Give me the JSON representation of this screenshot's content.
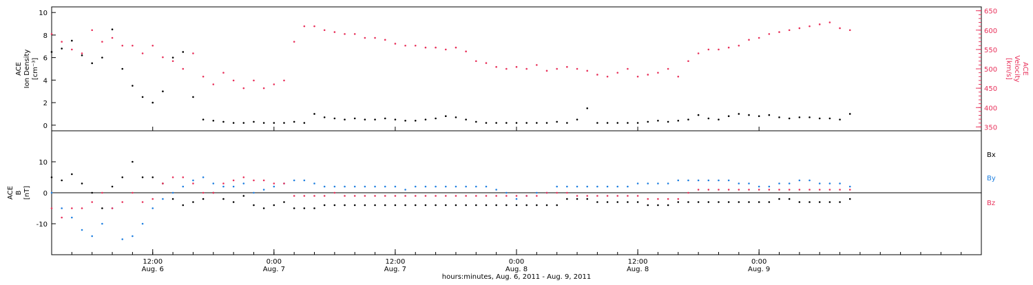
{
  "chart_data": [
    {
      "type": "scatter",
      "panel": "top",
      "ylabel_lines": [
        "ACE",
        "Ion Density",
        "[cm⁻³]"
      ],
      "y2label_lines": [
        "ACE",
        "Velocity",
        "[km/s]"
      ],
      "ylim": [
        -0.5,
        10.5
      ],
      "yticks": [
        0,
        2,
        4,
        6,
        8,
        10
      ],
      "y2lim": [
        340,
        660
      ],
      "y2ticks": [
        350,
        400,
        450,
        500,
        550,
        600,
        650
      ],
      "colors": {
        "density": "#000000",
        "velocity": "#e8305a"
      },
      "series": [
        {
          "axis": "left",
          "x": [
            0,
            1,
            2,
            3,
            4,
            5,
            6,
            7,
            8,
            9,
            10,
            11,
            12,
            13,
            14,
            15,
            16,
            17,
            18,
            19,
            20,
            21,
            22,
            23,
            24,
            25,
            26,
            27,
            28,
            29,
            30,
            31,
            32,
            33,
            34,
            35,
            36,
            37,
            38,
            39,
            40,
            41,
            42,
            43,
            44,
            45,
            46,
            47,
            48,
            49,
            50,
            51,
            52,
            53,
            54,
            55,
            56,
            57,
            58,
            59,
            60,
            61,
            62,
            63,
            64,
            65,
            66,
            67,
            68,
            69,
            70,
            71,
            72,
            73,
            74,
            75,
            76,
            77,
            78,
            79
          ],
          "values": [
            6.5,
            6.8,
            7.5,
            6.2,
            5.5,
            6.0,
            8.5,
            5.0,
            3.5,
            2.5,
            2.0,
            3.0,
            6.0,
            6.5,
            2.5,
            0.5,
            0.4,
            0.3,
            0.2,
            0.2,
            0.3,
            0.2,
            0.2,
            0.2,
            0.3,
            0.2,
            1.0,
            0.7,
            0.6,
            0.5,
            0.6,
            0.5,
            0.5,
            0.6,
            0.5,
            0.4,
            0.4,
            0.5,
            0.6,
            0.8,
            0.7,
            0.5,
            0.3,
            0.2,
            0.2,
            0.2,
            0.2,
            0.2,
            0.2,
            0.2,
            0.3,
            0.2,
            0.5,
            1.5,
            0.2,
            0.2,
            0.2,
            0.2,
            0.2,
            0.3,
            0.4,
            0.3,
            0.4,
            0.5,
            0.9,
            0.6,
            0.5,
            0.8,
            1.0,
            0.9,
            0.8,
            0.9,
            0.7,
            0.6,
            0.7,
            0.7,
            0.6,
            0.6,
            0.5,
            1.0
          ]
        },
        {
          "axis": "right",
          "x": [
            0,
            1,
            2,
            3,
            4,
            5,
            6,
            7,
            8,
            9,
            10,
            11,
            12,
            13,
            14,
            15,
            16,
            17,
            18,
            19,
            20,
            21,
            22,
            23,
            24,
            25,
            26,
            27,
            28,
            29,
            30,
            31,
            32,
            33,
            34,
            35,
            36,
            37,
            38,
            39,
            40,
            41,
            42,
            43,
            44,
            45,
            46,
            47,
            48,
            49,
            50,
            51,
            52,
            53,
            54,
            55,
            56,
            57,
            58,
            59,
            60,
            61,
            62,
            63,
            64,
            65,
            66,
            67,
            68,
            69,
            70,
            71,
            72,
            73,
            74,
            75,
            76,
            77,
            78,
            79
          ],
          "values": [
            590,
            570,
            550,
            540,
            600,
            570,
            580,
            560,
            560,
            540,
            560,
            530,
            520,
            500,
            540,
            480,
            460,
            490,
            470,
            450,
            470,
            450,
            460,
            470,
            570,
            610,
            610,
            600,
            595,
            590,
            590,
            580,
            580,
            575,
            565,
            560,
            560,
            555,
            555,
            550,
            555,
            545,
            520,
            515,
            505,
            500,
            505,
            500,
            510,
            495,
            500,
            505,
            500,
            495,
            485,
            480,
            490,
            500,
            480,
            485,
            490,
            500,
            480,
            520,
            540,
            550,
            550,
            555,
            560,
            575,
            580,
            590,
            595,
            600,
            605,
            610,
            615,
            620,
            605,
            600
          ]
        }
      ],
      "x_hours_from_start": [
        0,
        1,
        2,
        3,
        4,
        5,
        6,
        7,
        8,
        9,
        10,
        11,
        12,
        13,
        14,
        15,
        16,
        17,
        18,
        19,
        20,
        21,
        22,
        23,
        24,
        25,
        26,
        27,
        28,
        29,
        30,
        31,
        32,
        33,
        34,
        35,
        36,
        37,
        38,
        39,
        40,
        41,
        42,
        43,
        44,
        45,
        46,
        47,
        48,
        49,
        50,
        51,
        52,
        53,
        54,
        55,
        56,
        57,
        58,
        59,
        60,
        61,
        62,
        63,
        64,
        65,
        66,
        67,
        68,
        69,
        70,
        71,
        72,
        73,
        74,
        75,
        76,
        77,
        78,
        79
      ]
    },
    {
      "type": "scatter",
      "panel": "bottom",
      "ylabel_lines": [
        "ACE",
        "B",
        "[nT]"
      ],
      "ylim": [
        -20,
        20
      ],
      "yticks": [
        -10,
        0,
        10
      ],
      "series": [
        {
          "name": "Bx",
          "color": "#000000",
          "values": [
            5,
            4,
            6,
            3,
            0,
            -5,
            2,
            5,
            10,
            5,
            5,
            3,
            -2,
            -4,
            -3,
            -2,
            0,
            -2,
            -3,
            -1,
            -4,
            -5,
            -4,
            -3,
            -5,
            -5,
            -5,
            -4,
            -4,
            -4,
            -4,
            -4,
            -4,
            -4,
            -4,
            -4,
            -4,
            -4,
            -4,
            -4,
            -4,
            -4,
            -4,
            -4,
            -4,
            -4,
            -4,
            -4,
            -4,
            -4,
            -4,
            -2,
            -2,
            -2,
            -3,
            -3,
            -3,
            -3,
            -3,
            -4,
            -4,
            -4,
            -3,
            -3,
            -3,
            -3,
            -3,
            -3,
            -3,
            -3,
            -3,
            -3,
            -2,
            -2,
            -3,
            -3,
            -3,
            -3,
            -3,
            -2
          ]
        },
        {
          "name": "By",
          "color": "#1e7fe0",
          "values": [
            0,
            -5,
            -8,
            -12,
            -14,
            -10,
            -5,
            -15,
            -14,
            -10,
            -5,
            -2,
            0,
            2,
            4,
            5,
            3,
            2,
            2,
            3,
            0,
            1,
            2,
            3,
            4,
            4,
            3,
            2,
            2,
            2,
            2,
            2,
            2,
            2,
            2,
            1,
            2,
            2,
            2,
            2,
            2,
            2,
            2,
            2,
            1,
            0,
            -2,
            -1,
            0,
            0,
            2,
            2,
            2,
            2,
            2,
            2,
            2,
            2,
            3,
            3,
            3,
            3,
            4,
            4,
            4,
            4,
            4,
            4,
            3,
            3,
            2,
            2,
            3,
            3,
            4,
            4,
            3,
            3,
            3,
            2
          ]
        },
        {
          "name": "Bz",
          "color": "#e8305a",
          "values": [
            -5,
            -8,
            -5,
            -5,
            -3,
            0,
            -5,
            -3,
            0,
            -3,
            -2,
            3,
            5,
            5,
            3,
            0,
            0,
            3,
            4,
            5,
            4,
            4,
            3,
            3,
            -1,
            -1,
            -1,
            -1,
            0,
            -1,
            -1,
            -1,
            -1,
            -1,
            -1,
            -1,
            -1,
            -1,
            -1,
            -1,
            -1,
            -1,
            -1,
            -1,
            -1,
            -1,
            -1,
            -1,
            -1,
            0,
            0,
            0,
            -1,
            -1,
            -1,
            -1,
            -1,
            -1,
            -1,
            -2,
            -2,
            -2,
            -2,
            0,
            1,
            1,
            1,
            1,
            1,
            1,
            1,
            1,
            1,
            1,
            1,
            1,
            1,
            1,
            1,
            1
          ]
        }
      ],
      "legend": [
        "Bx",
        "By",
        "Bz"
      ],
      "legend_placement": "right"
    }
  ],
  "x_axis": {
    "ticks": [
      {
        "time": "12:00",
        "date": "Aug. 6"
      },
      {
        "time": "0:00",
        "date": "Aug. 7"
      },
      {
        "time": "12:00",
        "date": "Aug. 7"
      },
      {
        "time": "0:00",
        "date": "Aug. 8"
      },
      {
        "time": "12:00",
        "date": "Aug. 8"
      },
      {
        "time": "0:00",
        "date": "Aug. 9"
      }
    ],
    "label": "hours:minutes, Aug.  6, 2011 - Aug.  9, 2011"
  }
}
